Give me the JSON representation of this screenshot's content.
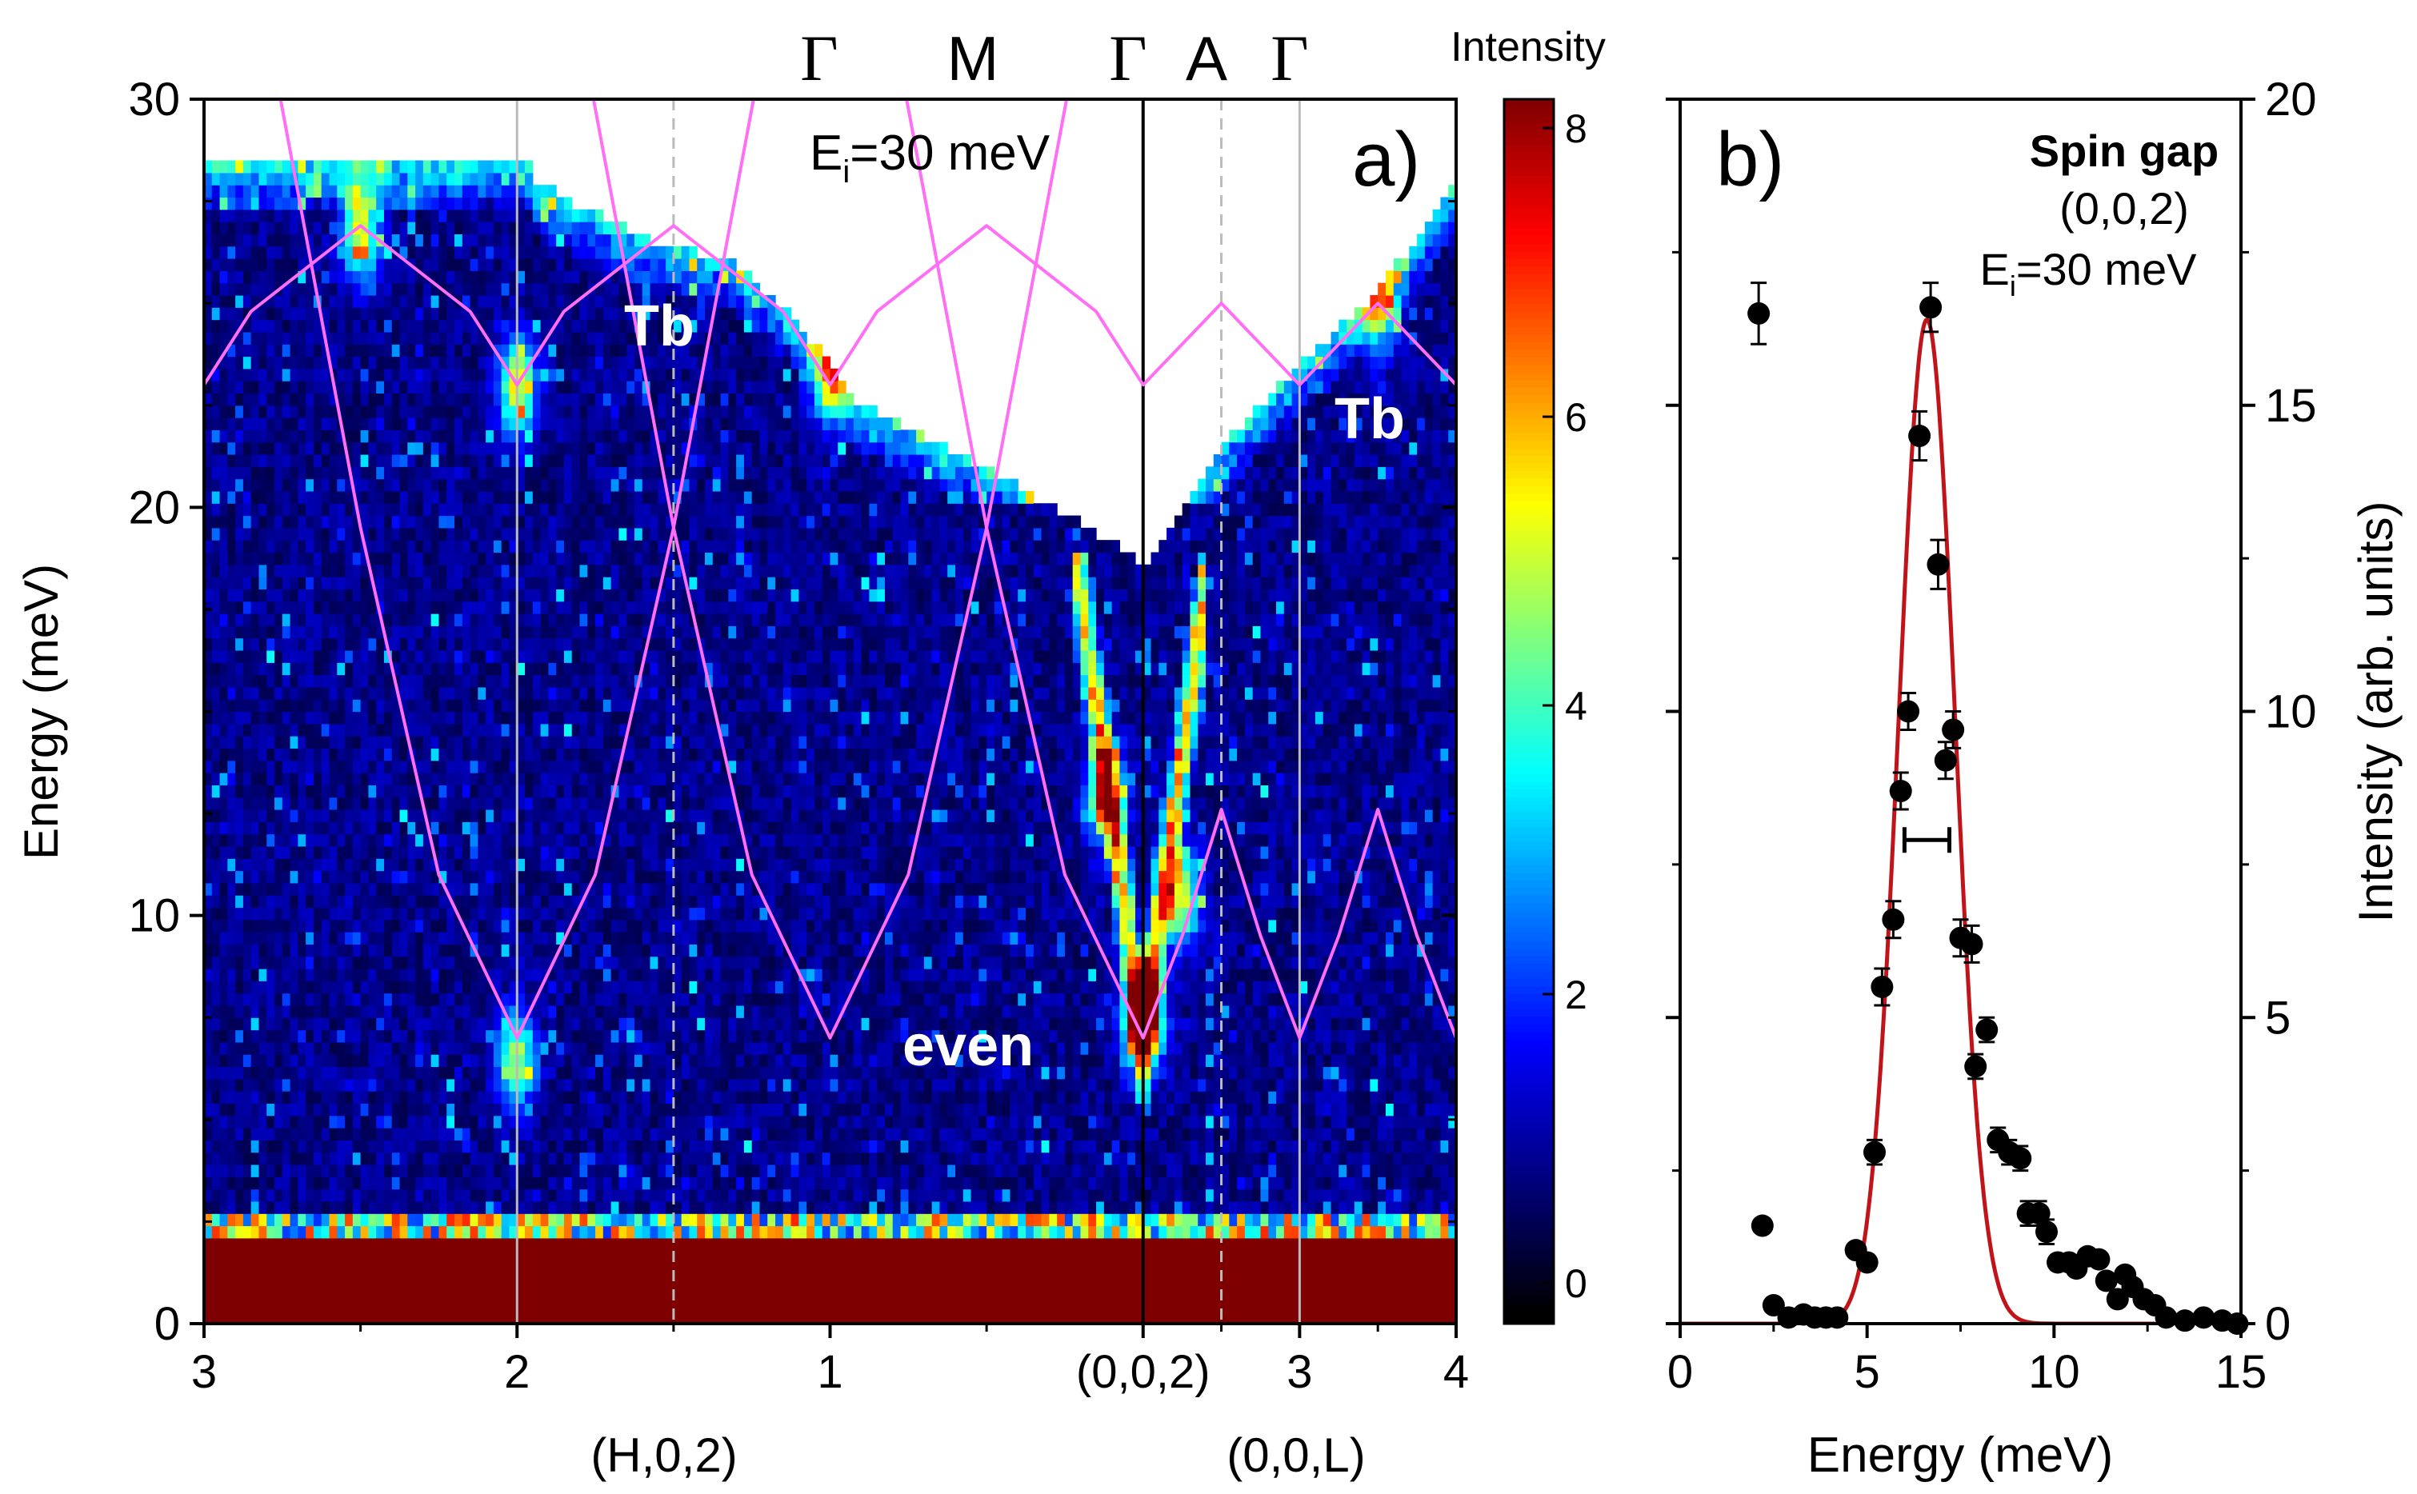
{
  "chart_data": [
    {
      "panel": "a)",
      "type": "heatmap",
      "annotation": "E_i=30 meV",
      "annotation_main": "E",
      "annotation_sub": "i",
      "annotation_rest": "=30 meV",
      "ylabel": "Energy (meV)",
      "ylim": [
        0,
        30
      ],
      "y_ticks": [
        "0",
        "10",
        "20",
        "30"
      ],
      "x_tick_labels": [
        "3",
        "2",
        "1",
        "(0,0,2)",
        "3",
        "4"
      ],
      "x_segment_labels": [
        "(H,0,2)",
        "(0,0,L)"
      ],
      "symmetry_points": [
        "Γ",
        "M",
        "Γ",
        "A",
        "Γ"
      ],
      "labels": [
        "Tb",
        "Tb",
        "even"
      ],
      "colorbar": {
        "title": "Intensity",
        "range": [
          -0.2,
          8.2
        ],
        "ticks": [
          "0",
          "2",
          "4",
          "6",
          "8"
        ],
        "colormap": [
          "#000000",
          "#00007f",
          "#0000ff",
          "#007fff",
          "#00ffff",
          "#7fff7f",
          "#ffff00",
          "#ff7f00",
          "#ff0000",
          "#7f0000"
        ]
      },
      "top_edge": [
        {
          "q": 0.0,
          "e": 28.4
        },
        {
          "q": 0.9,
          "e": 28.4
        },
        {
          "q": 0.9,
          "e": 28.6
        },
        {
          "q": 1.05,
          "e": 28.6
        },
        {
          "q": 1.05,
          "e": 28.0
        },
        {
          "q": 1.4,
          "e": 26.6
        },
        {
          "q": 1.7,
          "e": 26.0
        },
        {
          "q": 1.9,
          "e": 24.5
        },
        {
          "q": 2.1,
          "e": 22.5
        },
        {
          "q": 2.5,
          "e": 21.0
        },
        {
          "q": 2.95,
          "e": 18.9
        },
        {
          "q": 3.0,
          "e": 18.5
        },
        {
          "q": 3.25,
          "e": 21.5
        },
        {
          "q": 3.5,
          "e": 23.5
        },
        {
          "q": 3.75,
          "e": 25.3
        },
        {
          "q": 4.0,
          "e": 28.0
        }
      ],
      "model_curves": [
        {
          "name": "Tb",
          "color": "#ff6ef5",
          "points": [
            {
              "q": 0.0,
              "e": 23.0
            },
            {
              "q": 0.15,
              "e": 24.8
            },
            {
              "q": 0.5,
              "e": 26.9
            },
            {
              "q": 0.85,
              "e": 24.8
            },
            {
              "q": 1.0,
              "e": 23.0
            },
            {
              "q": 1.15,
              "e": 24.8
            },
            {
              "q": 1.5,
              "e": 26.9
            },
            {
              "q": 1.85,
              "e": 24.8
            },
            {
              "q": 2.0,
              "e": 23.0
            },
            {
              "q": 2.15,
              "e": 24.8
            },
            {
              "q": 2.5,
              "e": 26.9
            },
            {
              "q": 2.85,
              "e": 24.8
            },
            {
              "q": 3.0,
              "e": 23.0
            },
            {
              "q": 3.25,
              "e": 25.0
            },
            {
              "q": 3.5,
              "e": 23.0
            },
            {
              "q": 3.75,
              "e": 25.0
            },
            {
              "q": 4.0,
              "e": 23.0
            }
          ]
        },
        {
          "name": "even",
          "color": "#ff6ef5",
          "points": [
            {
              "q": 0.22,
              "e": 31.0
            },
            {
              "q": 0.5,
              "e": 19.5
            },
            {
              "q": 0.75,
              "e": 11.0
            },
            {
              "q": 1.0,
              "e": 7.0
            },
            {
              "q": 1.25,
              "e": 11.0
            },
            {
              "q": 1.5,
              "e": 19.5
            },
            {
              "q": 1.78,
              "e": 31.0
            }
          ]
        },
        {
          "name": "even",
          "color": "#ff6ef5",
          "points": [
            {
              "q": 1.22,
              "e": 31.0
            },
            {
              "q": 1.5,
              "e": 19.5
            },
            {
              "q": 1.75,
              "e": 11.0
            },
            {
              "q": 2.0,
              "e": 7.0
            },
            {
              "q": 2.25,
              "e": 11.0
            },
            {
              "q": 2.5,
              "e": 19.5
            },
            {
              "q": 2.78,
              "e": 31.0
            }
          ]
        },
        {
          "name": "even",
          "color": "#ff6ef5",
          "points": [
            {
              "q": 2.22,
              "e": 31.0
            },
            {
              "q": 2.5,
              "e": 19.5
            },
            {
              "q": 2.75,
              "e": 11.0
            },
            {
              "q": 3.0,
              "e": 7.0
            },
            {
              "q": 3.125,
              "e": 9.5
            },
            {
              "q": 3.25,
              "e": 12.6
            },
            {
              "q": 3.375,
              "e": 9.5
            },
            {
              "q": 3.5,
              "e": 7.0
            },
            {
              "q": 3.625,
              "e": 9.5
            },
            {
              "q": 3.75,
              "e": 12.6
            },
            {
              "q": 3.875,
              "e": 9.5
            },
            {
              "q": 4.0,
              "e": 7.0
            }
          ]
        }
      ],
      "bright_features": [
        {
          "q": 0.5,
          "e": 26.8,
          "intensity": 4.5
        },
        {
          "q": 2.0,
          "e": 23.2,
          "intensity": 4.0
        },
        {
          "q": 3.0,
          "e": 23.0,
          "intensity": 6.0
        },
        {
          "q": 3.75,
          "e": 25.0,
          "intensity": 4.0
        },
        {
          "q": 1.0,
          "e": 23.0,
          "intensity": 4.5
        },
        {
          "q": 3.0,
          "e": 7.5,
          "intensity": 8.0
        },
        {
          "q": 2.88,
          "e": 13.0,
          "intensity": 5.0
        },
        {
          "q": 3.12,
          "e": 10.5,
          "intensity": 4.5
        },
        {
          "q": 1.0,
          "e": 6.5,
          "intensity": 4.0
        }
      ]
    },
    {
      "panel": "b)",
      "type": "scatter",
      "title": "Spin gap",
      "subtitle": "(0,0,2)",
      "annotation_main": "E",
      "annotation_sub": "i",
      "annotation_rest": "=30 meV",
      "xlabel": "Energy (meV)",
      "ylabel": "Intensity (arb. units)",
      "xlim": [
        0,
        15
      ],
      "ylim": [
        0,
        20
      ],
      "x_ticks": [
        "0",
        "5",
        "10",
        "15"
      ],
      "y_ticks": [
        "0",
        "5",
        "10",
        "15",
        "20"
      ],
      "resolution_bar": {
        "x_center": 6.6,
        "half_width": 0.6,
        "y": 7.9
      },
      "series": [
        {
          "name": "data",
          "color": "#000000",
          "points": [
            {
              "x": 2.1,
              "y": 16.5,
              "err": 0.5
            },
            {
              "x": 2.2,
              "y": 1.6,
              "err": 0.1
            },
            {
              "x": 2.5,
              "y": 0.3,
              "err": 0.1
            },
            {
              "x": 2.9,
              "y": 0.1,
              "err": 0.1
            },
            {
              "x": 3.3,
              "y": 0.15,
              "err": 0.1
            },
            {
              "x": 3.6,
              "y": 0.1,
              "err": 0.1
            },
            {
              "x": 3.9,
              "y": 0.1,
              "err": 0.1
            },
            {
              "x": 4.2,
              "y": 0.1,
              "err": 0.1
            },
            {
              "x": 4.7,
              "y": 1.2,
              "err": 0.1
            },
            {
              "x": 5.0,
              "y": 1.0,
              "err": 0.1
            },
            {
              "x": 5.2,
              "y": 2.8,
              "err": 0.2
            },
            {
              "x": 5.4,
              "y": 5.5,
              "err": 0.3
            },
            {
              "x": 5.7,
              "y": 6.6,
              "err": 0.3
            },
            {
              "x": 5.9,
              "y": 8.7,
              "err": 0.3
            },
            {
              "x": 6.1,
              "y": 10.0,
              "err": 0.3
            },
            {
              "x": 6.4,
              "y": 14.5,
              "err": 0.4
            },
            {
              "x": 6.7,
              "y": 16.6,
              "err": 0.4
            },
            {
              "x": 6.9,
              "y": 12.4,
              "err": 0.4
            },
            {
              "x": 7.1,
              "y": 9.2,
              "err": 0.3
            },
            {
              "x": 7.3,
              "y": 9.7,
              "err": 0.3
            },
            {
              "x": 7.5,
              "y": 6.3,
              "err": 0.3
            },
            {
              "x": 7.8,
              "y": 6.2,
              "err": 0.3
            },
            {
              "x": 7.9,
              "y": 4.2,
              "err": 0.2
            },
            {
              "x": 8.2,
              "y": 4.8,
              "err": 0.2
            },
            {
              "x": 8.5,
              "y": 3.0,
              "err": 0.2
            },
            {
              "x": 8.8,
              "y": 2.8,
              "err": 0.2
            },
            {
              "x": 9.1,
              "y": 2.7,
              "err": 0.2
            },
            {
              "x": 9.3,
              "y": 1.8,
              "err": 0.2
            },
            {
              "x": 9.6,
              "y": 1.8,
              "err": 0.2
            },
            {
              "x": 9.8,
              "y": 1.5,
              "err": 0.2
            },
            {
              "x": 10.1,
              "y": 1.0,
              "err": 0.1
            },
            {
              "x": 10.4,
              "y": 1.0,
              "err": 0.1
            },
            {
              "x": 10.6,
              "y": 0.9,
              "err": 0.1
            },
            {
              "x": 10.9,
              "y": 1.1,
              "err": 0.1
            },
            {
              "x": 11.2,
              "y": 1.05,
              "err": 0.1
            },
            {
              "x": 11.4,
              "y": 0.7,
              "err": 0.1
            },
            {
              "x": 11.7,
              "y": 0.4,
              "err": 0.1
            },
            {
              "x": 11.9,
              "y": 0.8,
              "err": 0.1
            },
            {
              "x": 12.1,
              "y": 0.6,
              "err": 0.1
            },
            {
              "x": 12.4,
              "y": 0.4,
              "err": 0.1
            },
            {
              "x": 12.7,
              "y": 0.3,
              "err": 0.1
            },
            {
              "x": 13.0,
              "y": 0.1,
              "err": 0.1
            },
            {
              "x": 13.5,
              "y": 0.05,
              "err": 0.1
            },
            {
              "x": 14.0,
              "y": 0.1,
              "err": 0.1
            },
            {
              "x": 14.5,
              "y": 0.05,
              "err": 0.1
            },
            {
              "x": 14.9,
              "y": 0.0,
              "err": 0.1
            }
          ]
        },
        {
          "name": "fit",
          "color": "#c0141a",
          "type": "gaussian",
          "center": 6.6,
          "amplitude": 16.4,
          "sigma": 0.75,
          "x_range": [
            0,
            12.7
          ]
        }
      ]
    }
  ]
}
